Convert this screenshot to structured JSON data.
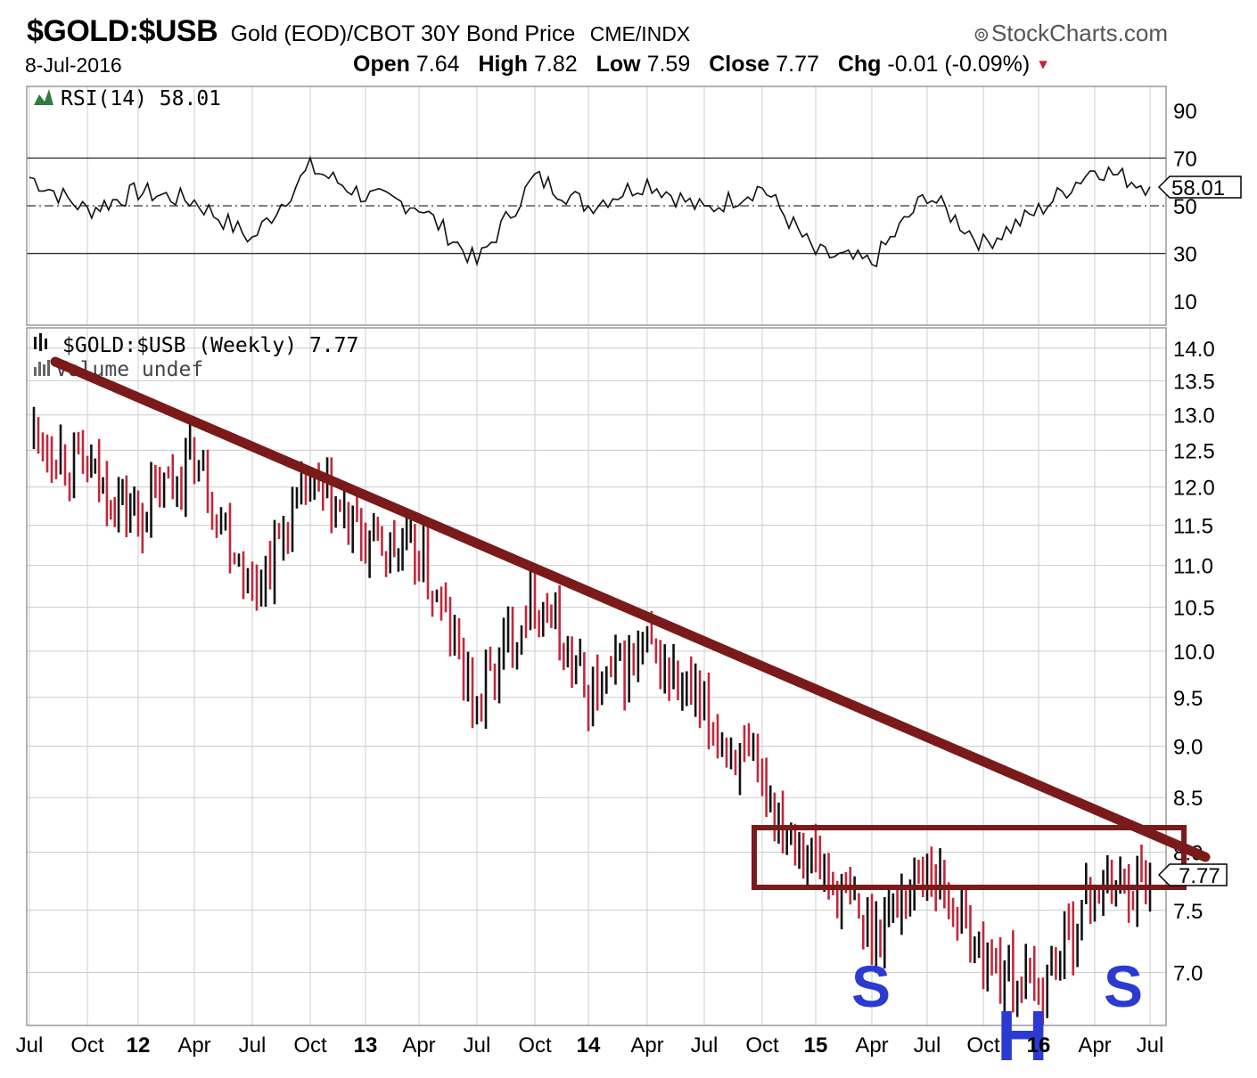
{
  "header": {
    "symbol": "$GOLD:$USB",
    "description": "Gold (EOD)/CBOT 30Y Bond Price",
    "exchange": "CME/INDX",
    "brand": "StockCharts.com",
    "date": "8-Jul-2016",
    "open_label": "Open",
    "open": "7.64",
    "high_label": "High",
    "high": "7.82",
    "low_label": "Low",
    "low": "7.59",
    "close_label": "Close",
    "close": "7.77",
    "chg_label": "Chg",
    "chg": "-0.01 (-0.09%)"
  },
  "rsi_panel": {
    "label": "RSI(14) 58.01",
    "current": 58.01,
    "current_text": "58.01",
    "ticks": [
      "90",
      "70",
      "50",
      "30",
      "10"
    ]
  },
  "price_panel": {
    "label": "$GOLD:$USB (Weekly) 7.77",
    "volume_label": "Volume undef",
    "current_text": "7.77",
    "y_ticks": [
      "14.0",
      "13.5",
      "13.0",
      "12.5",
      "12.0",
      "11.5",
      "11.0",
      "10.5",
      "10.0",
      "9.5",
      "9.0",
      "8.5",
      "8.0",
      "7.5",
      "7.0"
    ]
  },
  "x_axis": {
    "labels": [
      "Jul",
      "Oct",
      "12",
      "Apr",
      "Jul",
      "Oct",
      "13",
      "Apr",
      "Jul",
      "Oct",
      "14",
      "Apr",
      "Jul",
      "Oct",
      "15",
      "Apr",
      "Jul",
      "Oct",
      "16",
      "Apr",
      "Jul"
    ]
  },
  "annotations": {
    "left_shoulder": "S",
    "head": "H",
    "right_shoulder": "S"
  },
  "colors": {
    "up": "#111111",
    "down": "#c0283c",
    "trendline": "#7a1a1a",
    "pattern_letters": "#2b3bd1",
    "grid": "#cccccc"
  },
  "chart_data": [
    {
      "type": "line",
      "title": "RSI(14) 58.01",
      "ylim": [
        0,
        100
      ],
      "reference_lines": [
        70,
        50,
        30
      ],
      "x": [
        "Jul",
        "Oct",
        "12",
        "Apr",
        "Jul",
        "Oct",
        "13",
        "Apr",
        "Jul",
        "Oct",
        "14",
        "Apr",
        "Jul",
        "Oct",
        "15",
        "Apr",
        "Jul",
        "Oct",
        "16",
        "Apr",
        "Jul"
      ],
      "series": [
        {
          "values": [
            62,
            48,
            56,
            52,
            36,
            66,
            54,
            50,
            26,
            62,
            50,
            60,
            48,
            58,
            30,
            26,
            55,
            34,
            48,
            66,
            58
          ]
        }
      ]
    },
    {
      "type": "line",
      "title": "$GOLD:$USB (Weekly) 7.77",
      "y_scale": "log",
      "ylim": [
        6.6,
        14.0
      ],
      "x": [
        "Jul",
        "Oct",
        "12",
        "Apr",
        "Jul",
        "Oct",
        "13",
        "Apr",
        "Jul",
        "Oct",
        "14",
        "Apr",
        "Jul",
        "Oct",
        "15",
        "Apr",
        "Jul",
        "Oct",
        "16",
        "Apr",
        "Jul"
      ],
      "series": [
        {
          "values": [
            12.8,
            12.2,
            11.6,
            12.4,
            10.7,
            12.0,
            11.3,
            11.1,
            9.4,
            10.7,
            9.5,
            10.0,
            9.3,
            8.6,
            7.9,
            7.3,
            7.9,
            7.1,
            6.85,
            7.7,
            7.77
          ]
        }
      ],
      "annotations": [
        "S",
        "H",
        "S"
      ]
    }
  ]
}
